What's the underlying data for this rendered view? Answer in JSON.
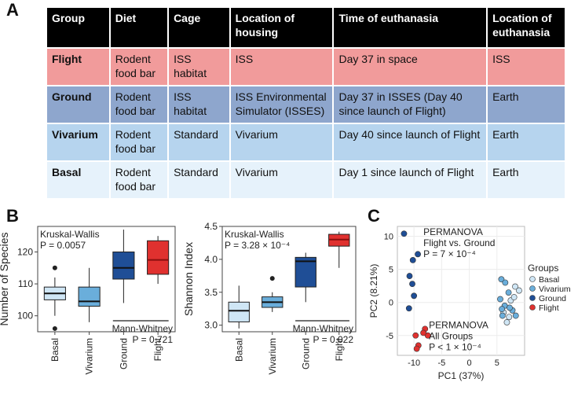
{
  "panels": {
    "a": "A",
    "b": "B",
    "c": "C"
  },
  "table": {
    "headers": [
      "Group",
      "Diet",
      "Cage",
      "Location of housing",
      "Time of euthanasia",
      "Location of euthanasia"
    ],
    "rows": [
      {
        "group": "Flight",
        "diet": "Rodent food bar",
        "cage": "ISS habitat",
        "housing": "ISS",
        "time": "Day 37 in space",
        "euth": "ISS"
      },
      {
        "group": "Ground",
        "diet": "Rodent food bar",
        "cage": "ISS habitat",
        "housing": "ISS Environmental Simulator (ISSES)",
        "time": "Day 37 in ISSES (Day 40 since launch of Flight)",
        "euth": "Earth"
      },
      {
        "group": "Vivarium",
        "diet": "Rodent food bar",
        "cage": "Standard",
        "housing": "Vivarium",
        "time": "Day 40 since launch of Flight",
        "euth": "Earth"
      },
      {
        "group": "Basal",
        "diet": "Rodent food bar",
        "cage": "Standard",
        "housing": "Vivarium",
        "time": "Day 1 since launch of Flight",
        "euth": "Earth"
      }
    ]
  },
  "colors": {
    "Basal": "#cfe6f5",
    "Vivarium": "#6aaedb",
    "Ground": "#1f4e96",
    "Flight": "#e0312f"
  },
  "chart_data": [
    {
      "type": "box",
      "ylabel": "Number of Species",
      "categories": [
        "Basal",
        "Vivarium",
        "Ground",
        "Flight"
      ],
      "ylim": [
        95,
        128
      ],
      "yticks": [
        100,
        110,
        120
      ],
      "boxes": [
        {
          "min": 100,
          "q1": 105,
          "median": 107,
          "q3": 109,
          "max": 112,
          "outliers": [
            115,
            96
          ]
        },
        {
          "min": 98,
          "q1": 103,
          "median": 104.5,
          "q3": 109,
          "max": 115,
          "outliers": []
        },
        {
          "min": 104,
          "q1": 111.5,
          "median": 115,
          "q3": 120,
          "max": 127,
          "outliers": []
        },
        {
          "min": 110,
          "q1": 113,
          "median": 117.5,
          "q3": 123.5,
          "max": 125,
          "outliers": []
        }
      ],
      "annotations": {
        "kw_title": "Kruskal-Wallis",
        "kw_p": "P = 0.0057",
        "mw_title": "Mann-Whitney",
        "mw_p": "P = 0.721"
      }
    },
    {
      "type": "box",
      "ylabel": "Shannon Index",
      "categories": [
        "Basal",
        "Vivarium",
        "Ground",
        "Flight"
      ],
      "ylim": [
        2.9,
        4.5
      ],
      "yticks": [
        3.0,
        3.5,
        4.0,
        4.5
      ],
      "boxes": [
        {
          "min": 2.95,
          "q1": 3.05,
          "median": 3.22,
          "q3": 3.35,
          "max": 3.6,
          "outliers": []
        },
        {
          "min": 3.2,
          "q1": 3.27,
          "median": 3.35,
          "q3": 3.43,
          "max": 3.5,
          "outliers": [
            3.71
          ]
        },
        {
          "min": 3.35,
          "q1": 3.58,
          "median": 3.97,
          "q3": 4.03,
          "max": 4.1,
          "outliers": []
        },
        {
          "min": 3.87,
          "q1": 4.2,
          "median": 4.3,
          "q3": 4.38,
          "max": 4.42,
          "outliers": []
        }
      ],
      "annotations": {
        "kw_title": "Kruskal-Wallis",
        "kw_p": "P = 3.28 × 10⁻⁴",
        "mw_title": "Mann-Whitney",
        "mw_p": "P = 0.022"
      }
    },
    {
      "type": "scatter",
      "xlabel": "PC1 (37%)",
      "ylabel": "PC2 (8.21%)",
      "xlim": [
        -13,
        10
      ],
      "ylim": [
        -8,
        11.5
      ],
      "xticks": [
        -10,
        -5,
        0,
        5
      ],
      "yticks": [
        -5,
        0,
        5,
        10
      ],
      "legend_title": "Groups",
      "series": [
        {
          "name": "Basal",
          "points": [
            [
              6.2,
              -1.5
            ],
            [
              7.5,
              0.3
            ],
            [
              8.3,
              2.4
            ],
            [
              9.0,
              1.8
            ],
            [
              6.8,
              -3.0
            ],
            [
              7.2,
              -2.2
            ],
            [
              8.1,
              0.8
            ]
          ]
        },
        {
          "name": "Vivarium",
          "points": [
            [
              5.8,
              3.5
            ],
            [
              6.5,
              3.0
            ],
            [
              7.1,
              1.5
            ],
            [
              5.6,
              0.5
            ],
            [
              6.4,
              -0.5
            ],
            [
              7.8,
              -1.2
            ],
            [
              8.4,
              -2.0
            ],
            [
              6.0,
              -2.0
            ],
            [
              7.3,
              -0.8
            ],
            [
              5.9,
              -1.0
            ]
          ]
        },
        {
          "name": "Ground",
          "points": [
            [
              -11.8,
              10.4
            ],
            [
              -9.3,
              7.3
            ],
            [
              -10.2,
              6.4
            ],
            [
              -10.8,
              4.0
            ],
            [
              -10.3,
              2.8
            ],
            [
              -10.0,
              1.0
            ],
            [
              -10.9,
              -0.9
            ]
          ]
        },
        {
          "name": "Flight",
          "points": [
            [
              -8.0,
              -4.0
            ],
            [
              -7.5,
              -5.0
            ],
            [
              -9.7,
              -5.0
            ],
            [
              -9.2,
              -6.5
            ],
            [
              -9.5,
              -7.0
            ],
            [
              -8.3,
              -4.6
            ]
          ]
        }
      ],
      "annotations": [
        {
          "line1": "PERMANOVA",
          "line2": "Flight vs. Ground",
          "line3": "P = 7 × 10⁻⁴"
        },
        {
          "line1": "PERMANOVA",
          "line2": "All Groups",
          "line3": "P < 1 × 10⁻⁴"
        }
      ]
    }
  ]
}
